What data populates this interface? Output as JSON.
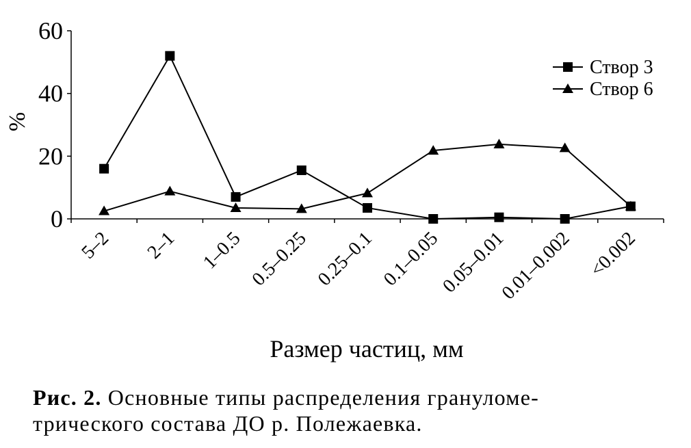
{
  "chart_data": {
    "type": "line",
    "categories": [
      "5–2",
      "2–1",
      "1–0.5",
      "0.5–0.25",
      "0.25–0.1",
      "0.1–0.05",
      "0.05–0.01",
      "0.01–0.002",
      "<0.002"
    ],
    "series": [
      {
        "name": "Створ 3",
        "marker": "square",
        "values": [
          16,
          52,
          7,
          15.5,
          3.5,
          0,
          0.5,
          0,
          4
        ]
      },
      {
        "name": "Створ 6",
        "marker": "triangle",
        "values": [
          2.5,
          8.8,
          3.5,
          3.2,
          8.2,
          21.8,
          23.8,
          22.6,
          4
        ]
      }
    ],
    "ylim": [
      0,
      60
    ],
    "yticks": [
      "0",
      "20",
      "40",
      "60"
    ],
    "ylabel": "%",
    "xlabel": "Размер частиц, мм",
    "legend_position": "top-right",
    "grid": false,
    "color": "#000000"
  },
  "caption": {
    "label": "Рис. 2.",
    "line1": "Основные типы распределения грануломе-",
    "line2": "трического состава ДО р. Полежаевка."
  }
}
